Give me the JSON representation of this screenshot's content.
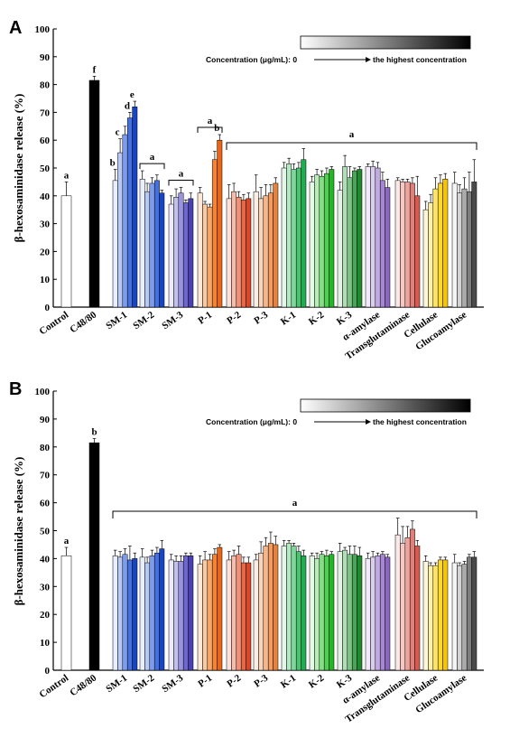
{
  "chart_data": [
    {
      "panel": "A",
      "type": "bar",
      "ylabel": "β-hexosaminidase release (%)",
      "ylim": [
        0,
        100
      ],
      "yticks": [
        0,
        10,
        20,
        30,
        40,
        50,
        60,
        70,
        80,
        90,
        100
      ],
      "legend_text": "Concentration (μg/mL): 0",
      "legend_text_end": "the highest concentration",
      "categories": [
        {
          "label": "Control",
          "values": [
            40
          ],
          "errors": [
            5
          ],
          "colors": [
            "#ffffff"
          ]
        },
        {
          "label": "C48/80",
          "values": [
            81.5
          ],
          "errors": [
            1.5
          ],
          "colors": [
            "#000000"
          ]
        },
        {
          "label": "SM-1",
          "values": [
            45.5,
            55.5,
            62,
            68,
            72
          ],
          "errors": [
            4,
            5,
            3,
            2,
            2
          ],
          "colors": [
            "#e8eefc",
            "#b8c9f4",
            "#7f9cea",
            "#4671dd",
            "#1745c8"
          ]
        },
        {
          "label": "SM-2",
          "values": [
            46,
            41.5,
            44.5,
            45.5,
            41
          ],
          "errors": [
            3,
            3,
            2,
            2,
            1
          ],
          "colors": [
            "#e8eefc",
            "#b8c9f4",
            "#7f9cea",
            "#4671dd",
            "#1745c8"
          ]
        },
        {
          "label": "SM-3",
          "values": [
            37,
            39.5,
            41,
            37.5,
            39
          ],
          "errors": [
            3,
            3,
            2,
            1,
            2
          ],
          "colors": [
            "#eceafa",
            "#c4c0ee",
            "#9a93de",
            "#6f67cc",
            "#4a40b4"
          ]
        },
        {
          "label": "P-1",
          "values": [
            41,
            37,
            36,
            53,
            60
          ],
          "errors": [
            2,
            1,
            1,
            3,
            2
          ],
          "colors": [
            "#fde8d8",
            "#fbc9a4",
            "#f8a66a",
            "#f48436",
            "#ec6512"
          ]
        },
        {
          "label": "P-2",
          "values": [
            39,
            41.5,
            39.5,
            38.5,
            39
          ],
          "errors": [
            5,
            3,
            2,
            2,
            2
          ],
          "colors": [
            "#fbe2dc",
            "#f6bcac",
            "#f09278",
            "#e76848",
            "#dd4524"
          ]
        },
        {
          "label": "P-3",
          "values": [
            41.5,
            39,
            40,
            41,
            44.5
          ],
          "errors": [
            6,
            4,
            4,
            3,
            2
          ],
          "colors": [
            "#fdeee4",
            "#f9d4bb",
            "#f5b88e",
            "#f09c62",
            "#e8823a"
          ]
        },
        {
          "label": "K-1",
          "values": [
            50,
            51.5,
            49.5,
            50,
            53
          ],
          "errors": [
            2,
            2,
            2,
            2,
            4
          ],
          "colors": [
            "#e3f6e9",
            "#b3e8c3",
            "#7fd79a",
            "#49c372",
            "#1dae4f"
          ]
        },
        {
          "label": "K-2",
          "values": [
            45,
            47.5,
            47,
            48,
            49.5
          ],
          "errors": [
            2,
            2,
            2,
            2,
            1
          ],
          "colors": [
            "#e6f9e6",
            "#b8edb8",
            "#85de85",
            "#52cc52",
            "#22b822"
          ]
        },
        {
          "label": "K-3",
          "values": [
            42,
            50.5,
            46.5,
            49,
            49.5
          ],
          "errors": [
            3,
            4,
            4,
            1,
            1
          ],
          "colors": [
            "#e3f2e5",
            "#b3dcb8",
            "#7fc388",
            "#4aa657",
            "#1e8a2e"
          ]
        },
        {
          "label": "α-amylase",
          "values": [
            50.5,
            50.5,
            50,
            45.5,
            43
          ],
          "errors": [
            1,
            2,
            2,
            3,
            3
          ],
          "colors": [
            "#f1ecf8",
            "#dbcdee",
            "#c2abe1",
            "#a688d2",
            "#8a66c2"
          ]
        },
        {
          "label": "Transglutaminase",
          "values": [
            45.5,
            45,
            45,
            44.5,
            40
          ],
          "errors": [
            1,
            1,
            1,
            2,
            7
          ],
          "colors": [
            "#fbe8e6",
            "#f5c8c4",
            "#eda49e",
            "#e37f77",
            "#d75a50"
          ]
        },
        {
          "label": "Cellulase",
          "values": [
            35,
            37.5,
            42.5,
            44.5,
            46
          ],
          "errors": [
            3,
            3,
            4,
            3,
            2
          ],
          "colors": [
            "#fff9db",
            "#fff0a6",
            "#ffe66b",
            "#ffd82f",
            "#f7c600"
          ]
        },
        {
          "label": "Glucoamylase",
          "values": [
            44.5,
            41,
            42.5,
            41.5,
            45
          ],
          "errors": [
            4,
            3,
            4,
            7,
            8
          ],
          "colors": [
            "#f4f4f4",
            "#d4d4d4",
            "#ababab",
            "#7e7e7e",
            "#4a4a4a"
          ]
        }
      ],
      "significance_letters": [
        {
          "category": "Control",
          "letter": "a"
        },
        {
          "category": "C48/80",
          "letter": "f"
        },
        {
          "category": "SM-1",
          "bar": 0,
          "letter": "b"
        },
        {
          "category": "SM-1",
          "bar": 1,
          "letter": "c"
        },
        {
          "category": "SM-1",
          "bar": 3,
          "letter": "d"
        },
        {
          "category": "SM-1",
          "bar": 4,
          "letter": "e"
        },
        {
          "category": "SM-2",
          "letter": "a"
        },
        {
          "category": "SM-3",
          "letter": "a"
        },
        {
          "category": "P-1",
          "letter": "a"
        },
        {
          "category": "P-1",
          "bar": 4,
          "letter": "b"
        },
        {
          "range": [
            "P-2",
            "Glucoamylase"
          ],
          "letter": "a"
        }
      ]
    },
    {
      "panel": "B",
      "type": "bar",
      "ylabel": "β-hexosaminidase release (%)",
      "ylim": [
        0,
        100
      ],
      "yticks": [
        0,
        10,
        20,
        30,
        40,
        50,
        60,
        70,
        80,
        90,
        100
      ],
      "legend_text": "Concentration (μg/mL): 0",
      "legend_text_end": "the highest concentration",
      "categories": [
        {
          "label": "Control",
          "values": [
            41
          ],
          "errors": [
            3
          ],
          "colors": [
            "#ffffff"
          ]
        },
        {
          "label": "C48/80",
          "values": [
            81.5
          ],
          "errors": [
            1.5
          ],
          "colors": [
            "#000000"
          ]
        },
        {
          "label": "SM-1",
          "values": [
            41,
            40.5,
            41.5,
            39.5,
            40
          ],
          "errors": [
            2,
            2,
            2,
            5,
            2
          ],
          "colors": [
            "#e8eefc",
            "#b8c9f4",
            "#7f9cea",
            "#4671dd",
            "#1745c8"
          ]
        },
        {
          "label": "SM-2",
          "values": [
            40.5,
            38.5,
            41,
            42,
            43.5
          ],
          "errors": [
            3,
            2,
            2,
            2,
            3
          ],
          "colors": [
            "#e8eefc",
            "#b8c9f4",
            "#7f9cea",
            "#4671dd",
            "#1745c8"
          ]
        },
        {
          "label": "SM-3",
          "values": [
            39.5,
            39,
            39,
            41,
            41
          ],
          "errors": [
            2,
            2,
            2,
            1,
            1
          ],
          "colors": [
            "#eceafa",
            "#c4c0ee",
            "#9a93de",
            "#6f67cc",
            "#4a40b4"
          ]
        },
        {
          "label": "P-1",
          "values": [
            38,
            39.5,
            39.5,
            41.5,
            44
          ],
          "errors": [
            3,
            3,
            2,
            2,
            1
          ],
          "colors": [
            "#fde8d8",
            "#fbc9a4",
            "#f8a66a",
            "#f48436",
            "#ec6512"
          ]
        },
        {
          "label": "P-2",
          "values": [
            39.5,
            41,
            41.5,
            38.5,
            38.5
          ],
          "errors": [
            3,
            2,
            3,
            2,
            2
          ],
          "colors": [
            "#fbe2dc",
            "#f6bcac",
            "#f09278",
            "#e76848",
            "#dd4524"
          ]
        },
        {
          "label": "P-3",
          "values": [
            39.5,
            42,
            44.5,
            45.5,
            45
          ],
          "errors": [
            2,
            4,
            3,
            4,
            3
          ],
          "colors": [
            "#fdeee4",
            "#f9d4bb",
            "#f5b88e",
            "#f09c62",
            "#e8823a"
          ]
        },
        {
          "label": "K-1",
          "values": [
            44.5,
            45.5,
            44.5,
            42.5,
            41
          ],
          "errors": [
            2,
            1,
            1,
            2,
            2
          ],
          "colors": [
            "#e3f6e9",
            "#b3e8c3",
            "#7fd79a",
            "#49c372",
            "#1dae4f"
          ]
        },
        {
          "label": "K-2",
          "values": [
            41,
            40,
            41.5,
            41,
            41.5
          ],
          "errors": [
            1,
            2,
            1,
            2,
            1
          ],
          "colors": [
            "#e6f9e6",
            "#b8edb8",
            "#85de85",
            "#52cc52",
            "#22b822"
          ]
        },
        {
          "label": "K-3",
          "values": [
            42.5,
            43,
            41.5,
            41.5,
            41
          ],
          "errors": [
            3,
            1,
            3,
            3,
            3
          ],
          "colors": [
            "#e3f2e5",
            "#b3dcb8",
            "#7fc388",
            "#4aa657",
            "#1e8a2e"
          ]
        },
        {
          "label": "α-amylase",
          "values": [
            40,
            40.5,
            41,
            41.5,
            40.5
          ],
          "errors": [
            2,
            2,
            1,
            1,
            1
          ],
          "colors": [
            "#f1ecf8",
            "#dbcdee",
            "#c2abe1",
            "#a688d2",
            "#8a66c2"
          ]
        },
        {
          "label": "Transglutaminase",
          "values": [
            48.5,
            45.5,
            47.5,
            50.5,
            44.5
          ],
          "errors": [
            6,
            6,
            4,
            3,
            2
          ],
          "colors": [
            "#fbe8e6",
            "#f5c8c4",
            "#eda49e",
            "#e37f77",
            "#d75a50"
          ]
        },
        {
          "label": "Cellulase",
          "values": [
            39,
            37.5,
            37.5,
            39.5,
            39.5
          ],
          "errors": [
            2,
            1,
            1,
            1,
            1
          ],
          "colors": [
            "#fff9db",
            "#fff0a6",
            "#ffe66b",
            "#ffd82f",
            "#f7c600"
          ]
        },
        {
          "label": "Glucoamylase",
          "values": [
            38.5,
            37.5,
            38,
            40.5,
            40.5
          ],
          "errors": [
            3,
            1,
            1,
            1,
            2
          ],
          "colors": [
            "#f4f4f4",
            "#d4d4d4",
            "#ababab",
            "#7e7e7e",
            "#4a4a4a"
          ]
        }
      ],
      "significance_letters": [
        {
          "category": "Control",
          "letter": "a"
        },
        {
          "category": "C48/80",
          "letter": "b"
        },
        {
          "range": [
            "SM-1",
            "Glucoamylase"
          ],
          "letter": "a"
        }
      ]
    }
  ],
  "legend_gradient": {
    "from": "#ffffff",
    "to": "#000000"
  }
}
